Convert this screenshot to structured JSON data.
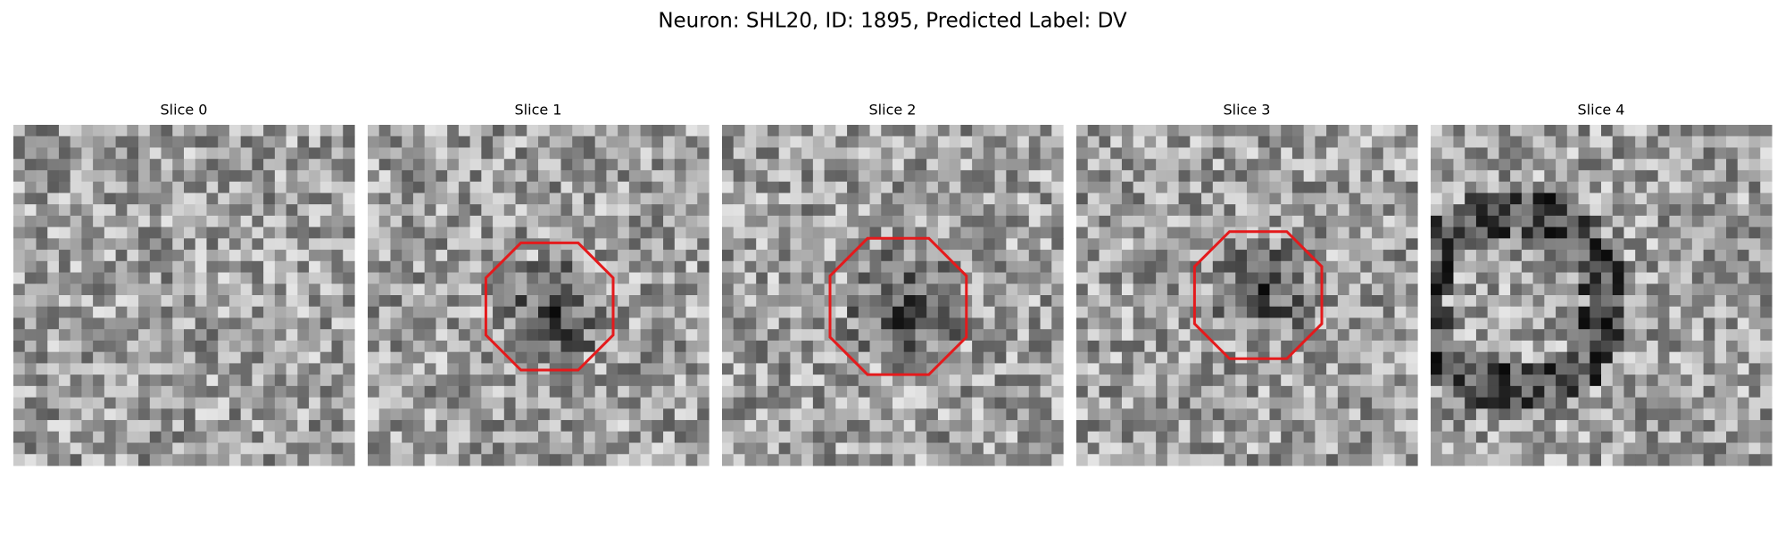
{
  "title": "Neuron: SHL20, ID: 1895, Predicted Label: DV",
  "panels": [
    {
      "title": "Slice 0"
    },
    {
      "title": "Slice 1"
    },
    {
      "title": "Slice 2"
    },
    {
      "title": "Slice 3"
    },
    {
      "title": "Slice 4"
    }
  ]
}
